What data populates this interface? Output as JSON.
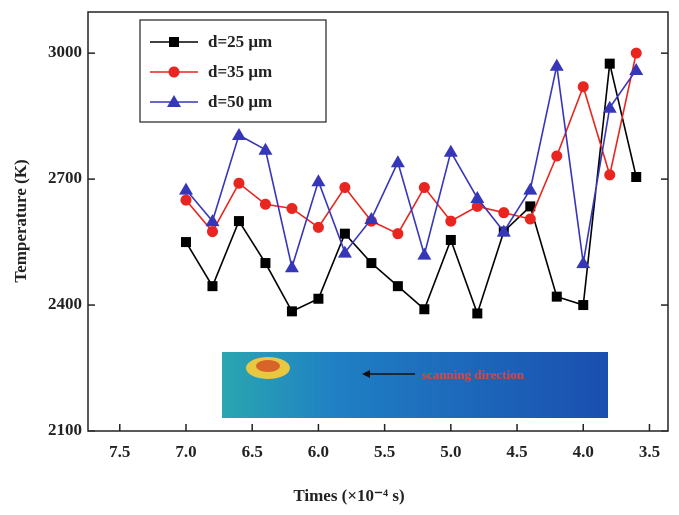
{
  "chart_data": {
    "type": "line",
    "x_label": "Times (×10⁻⁴ s)",
    "y_label": "Temperature (K)",
    "annotation": "scanning direction",
    "x": [
      7.0,
      6.8,
      6.6,
      6.4,
      6.2,
      6.0,
      5.8,
      5.6,
      5.4,
      5.2,
      5.0,
      4.8,
      4.6,
      4.4,
      4.2,
      4.0,
      3.8,
      3.6
    ],
    "series": [
      {
        "name": "d=25 μm",
        "color": "#000000",
        "marker": "square",
        "values": [
          2550,
          2445,
          2600,
          2500,
          2385,
          2415,
          2570,
          2500,
          2445,
          2390,
          2555,
          2380,
          2575,
          2635,
          2420,
          2400,
          2975,
          2705
        ]
      },
      {
        "name": "d=35 μm",
        "color": "#e8251f",
        "marker": "circle",
        "values": [
          2650,
          2575,
          2690,
          2640,
          2630,
          2585,
          2680,
          2600,
          2570,
          2680,
          2600,
          2635,
          2620,
          2605,
          2755,
          2920,
          2710,
          3000
        ]
      },
      {
        "name": "d=50 μm",
        "color": "#3636b8",
        "marker": "triangle",
        "values": [
          2675,
          2600,
          2805,
          2770,
          2490,
          2695,
          2525,
          2605,
          2740,
          2520,
          2765,
          2655,
          2575,
          2675,
          2970,
          2500,
          2870,
          2960
        ]
      }
    ],
    "xlim": [
      7.74,
      3.36
    ],
    "ylim": [
      2100,
      3098
    ],
    "xticks": [
      7.5,
      {
        "value": 7,
        "label": "7.0"
      },
      6.5,
      {
        "value": 6,
        "label": "6.0"
      },
      5.5,
      {
        "value": 5,
        "label": "5.0"
      },
      4.5,
      {
        "value": 4,
        "label": "4.0"
      },
      3.5
    ],
    "yticks": [
      2100,
      2400,
      2700,
      3000
    ],
    "legend": "upper-left"
  }
}
